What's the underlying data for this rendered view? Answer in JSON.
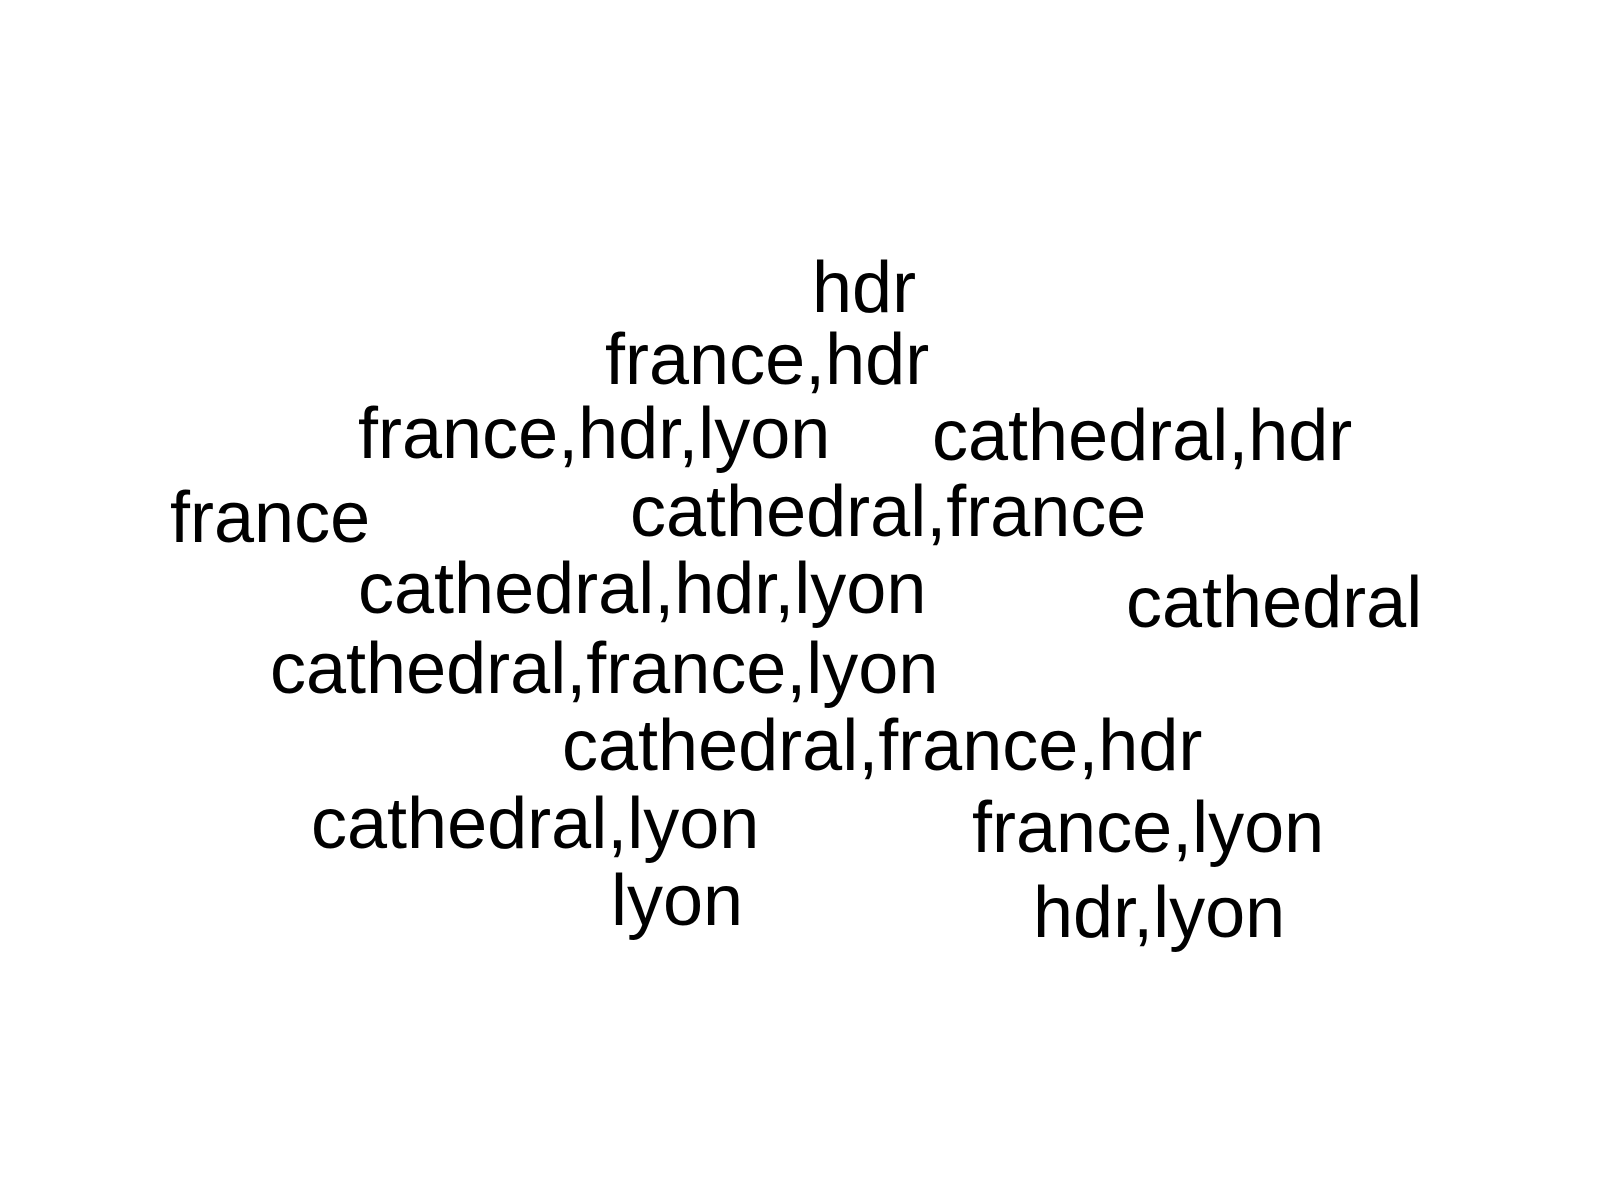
{
  "words": [
    "hdr",
    "france,hdr",
    "france,hdr,lyon",
    "cathedral,hdr",
    "france",
    "cathedral,france",
    "cathedral,hdr,lyon",
    "cathedral",
    "cathedral,france,lyon",
    "cathedral,france,hdr",
    "cathedral,lyon",
    "france,lyon",
    "lyon",
    "hdr,lyon"
  ],
  "colors": {
    "background": "#ffffff",
    "text": "#000000"
  }
}
